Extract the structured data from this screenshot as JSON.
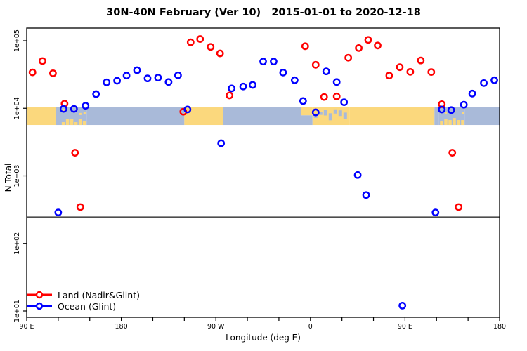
{
  "title": "30N-40N February (Ver 10)   2015-01-01 to 2020-12-18",
  "legend": {
    "items": [
      {
        "label": "Land (Nadir&Glint)",
        "color": "#ff0000"
      },
      {
        "label": "Ocean (Glint)",
        "color": "#0000ff"
      }
    ]
  },
  "colors": {
    "land_series": "#ff0000",
    "ocean_series": "#0000ff",
    "map_land": "#fbd87d",
    "map_ocean": "#a9bad9",
    "reference_line": "#4d4d4d",
    "axis": "#000000"
  },
  "chart_data": {
    "type": "scatter",
    "title": "30N-40N February (Ver 10)   2015-01-01 to 2020-12-18",
    "xlabel": "Longitude (deg E)",
    "ylabel": "N Total",
    "x_axis": {
      "range": [
        90,
        540
      ],
      "tick_lons": [
        90,
        180,
        270,
        360,
        450,
        540
      ],
      "tick_labels": [
        "90 E",
        "180",
        "90 W",
        "0",
        "90 E",
        "180"
      ],
      "minor_tick_step": 30
    },
    "y_axis": {
      "scale": "log10",
      "tick_values": [
        10,
        100,
        1000,
        10000,
        100000
      ],
      "tick_labels": [
        "1e+01",
        "1e+02",
        "1e+03",
        "1e+04",
        "1e+05"
      ]
    },
    "reference_line_y": 245,
    "legend_position": "bottom-left",
    "series": [
      {
        "name": "Land (Nadir&Glint)",
        "color": "#ff0000",
        "points": [
          [
            95.5,
            34000
          ],
          [
            105,
            50000
          ],
          [
            115,
            33000
          ],
          [
            126,
            11700
          ],
          [
            136,
            2200
          ],
          [
            141,
            345
          ],
          [
            239,
            8900
          ],
          [
            246,
            95000
          ],
          [
            255,
            106000
          ],
          [
            265,
            81000
          ],
          [
            274,
            65000
          ],
          [
            283,
            15500
          ],
          [
            355,
            83000
          ],
          [
            365,
            44000
          ],
          [
            373,
            14700
          ],
          [
            385,
            15000
          ],
          [
            396,
            56000
          ],
          [
            406,
            78000
          ],
          [
            415,
            103000
          ],
          [
            424,
            85000
          ],
          [
            435,
            30500
          ],
          [
            445,
            40600
          ],
          [
            455,
            34600
          ],
          [
            465,
            51000
          ],
          [
            475,
            34400
          ],
          [
            485,
            11500
          ],
          [
            495,
            2200
          ],
          [
            501,
            345
          ]
        ]
      },
      {
        "name": "Ocean (Glint)",
        "color": "#0000ff",
        "points": [
          [
            120,
            287
          ],
          [
            125,
            9800
          ],
          [
            135,
            9800
          ],
          [
            146,
            10900
          ],
          [
            156,
            16200
          ],
          [
            166,
            24200
          ],
          [
            176,
            25600
          ],
          [
            185,
            30500
          ],
          [
            195,
            36600
          ],
          [
            205,
            27700
          ],
          [
            215,
            28400
          ],
          [
            225,
            24500
          ],
          [
            234,
            30800
          ],
          [
            243,
            9600
          ],
          [
            275,
            3040
          ],
          [
            285,
            19700
          ],
          [
            296,
            21000
          ],
          [
            305,
            22200
          ],
          [
            315,
            49200
          ],
          [
            325,
            49200
          ],
          [
            334,
            33800
          ],
          [
            345,
            26000
          ],
          [
            353,
            12800
          ],
          [
            365,
            8700
          ],
          [
            375,
            35200
          ],
          [
            385,
            24500
          ],
          [
            392,
            12300
          ],
          [
            405,
            1030
          ],
          [
            413,
            521
          ],
          [
            447.5,
            12
          ],
          [
            479,
            287
          ],
          [
            485,
            9600
          ],
          [
            494,
            9400
          ],
          [
            506,
            11300
          ],
          [
            514,
            16500
          ],
          [
            525,
            23600
          ],
          [
            535,
            26000
          ]
        ]
      }
    ],
    "map_strip": {
      "description": "30N-40N latitude land/ocean strip drawn across the plot just below 1e+04",
      "y_top_value": 10300,
      "y_bottom_value": 5660,
      "segments": [
        {
          "from": 90,
          "to": 118,
          "kind": "land"
        },
        {
          "from": 118,
          "to": 122,
          "kind": "ocean"
        },
        {
          "from": 122,
          "to": 147,
          "kind": "islands"
        },
        {
          "from": 147,
          "to": 240,
          "kind": "ocean"
        },
        {
          "from": 240,
          "to": 277,
          "kind": "land"
        },
        {
          "from": 277,
          "to": 351,
          "kind": "ocean"
        },
        {
          "from": 351,
          "to": 362,
          "kind": "coast"
        },
        {
          "from": 362,
          "to": 397,
          "kind": "med"
        },
        {
          "from": 397,
          "to": 478,
          "kind": "land"
        },
        {
          "from": 478,
          "to": 482,
          "kind": "ocean"
        },
        {
          "from": 482,
          "to": 507,
          "kind": "islands"
        },
        {
          "from": 507,
          "to": 540,
          "kind": "ocean"
        }
      ]
    }
  }
}
